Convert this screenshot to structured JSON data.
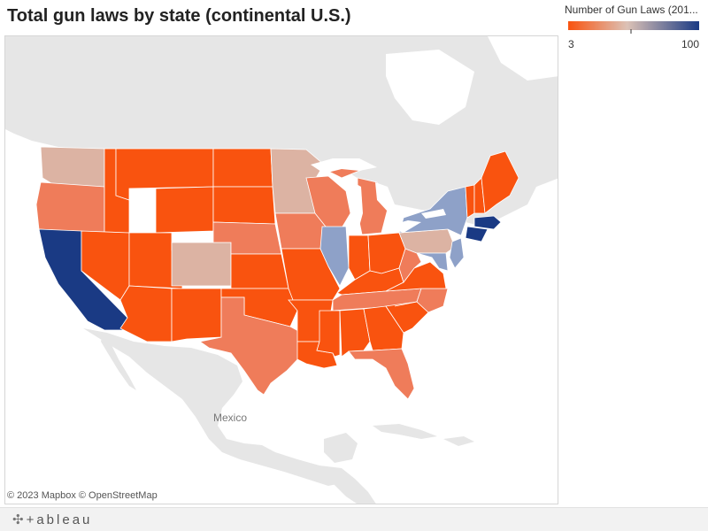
{
  "title": "Total gun laws by state (continental U.S.)",
  "legend": {
    "title": "Number of Gun Laws (201...",
    "min": "3",
    "max": "100"
  },
  "colors": {
    "ocean": "#ffffff",
    "land": "#e6e6e6",
    "low": "#f9530f",
    "mid": "#dcc2b6",
    "high": "#1a3a84"
  },
  "map": {
    "country_label": "Mexico"
  },
  "attribution": "© 2023 Mapbox  © OpenStreetMap",
  "footer": {
    "brand_icon": "tableau-logo-icon",
    "brand_text": "+ableau"
  },
  "states": [
    {
      "name": "Washington",
      "tier": "mid"
    },
    {
      "name": "Oregon",
      "tier": "low-mid"
    },
    {
      "name": "California",
      "tier": "high"
    },
    {
      "name": "Idaho",
      "tier": "low"
    },
    {
      "name": "Nevada",
      "tier": "low"
    },
    {
      "name": "Montana",
      "tier": "low"
    },
    {
      "name": "Wyoming",
      "tier": "low"
    },
    {
      "name": "Utah",
      "tier": "low"
    },
    {
      "name": "Arizona",
      "tier": "low"
    },
    {
      "name": "Colorado",
      "tier": "mid"
    },
    {
      "name": "New Mexico",
      "tier": "low"
    },
    {
      "name": "North Dakota",
      "tier": "low"
    },
    {
      "name": "South Dakota",
      "tier": "low"
    },
    {
      "name": "Nebraska",
      "tier": "low-mid"
    },
    {
      "name": "Kansas",
      "tier": "low"
    },
    {
      "name": "Oklahoma",
      "tier": "low"
    },
    {
      "name": "Texas",
      "tier": "low-mid"
    },
    {
      "name": "Minnesota",
      "tier": "mid"
    },
    {
      "name": "Iowa",
      "tier": "low-mid"
    },
    {
      "name": "Missouri",
      "tier": "low"
    },
    {
      "name": "Arkansas",
      "tier": "low"
    },
    {
      "name": "Louisiana",
      "tier": "low"
    },
    {
      "name": "Wisconsin",
      "tier": "low-mid"
    },
    {
      "name": "Illinois",
      "tier": "mid-high"
    },
    {
      "name": "Michigan",
      "tier": "low-mid"
    },
    {
      "name": "Indiana",
      "tier": "low"
    },
    {
      "name": "Ohio",
      "tier": "low"
    },
    {
      "name": "Kentucky",
      "tier": "low"
    },
    {
      "name": "Tennessee",
      "tier": "low-mid"
    },
    {
      "name": "Mississippi",
      "tier": "low"
    },
    {
      "name": "Alabama",
      "tier": "low"
    },
    {
      "name": "Georgia",
      "tier": "low"
    },
    {
      "name": "Florida",
      "tier": "low-mid"
    },
    {
      "name": "South Carolina",
      "tier": "low"
    },
    {
      "name": "North Carolina",
      "tier": "low-mid"
    },
    {
      "name": "Virginia",
      "tier": "low"
    },
    {
      "name": "West Virginia",
      "tier": "low-mid"
    },
    {
      "name": "Pennsylvania",
      "tier": "mid"
    },
    {
      "name": "New York",
      "tier": "mid-high"
    },
    {
      "name": "New Jersey",
      "tier": "mid-high"
    },
    {
      "name": "Maryland",
      "tier": "mid-high"
    },
    {
      "name": "Vermont",
      "tier": "low"
    },
    {
      "name": "New Hampshire",
      "tier": "low"
    },
    {
      "name": "Maine",
      "tier": "low"
    },
    {
      "name": "Massachusetts",
      "tier": "high"
    },
    {
      "name": "Connecticut",
      "tier": "high"
    }
  ]
}
